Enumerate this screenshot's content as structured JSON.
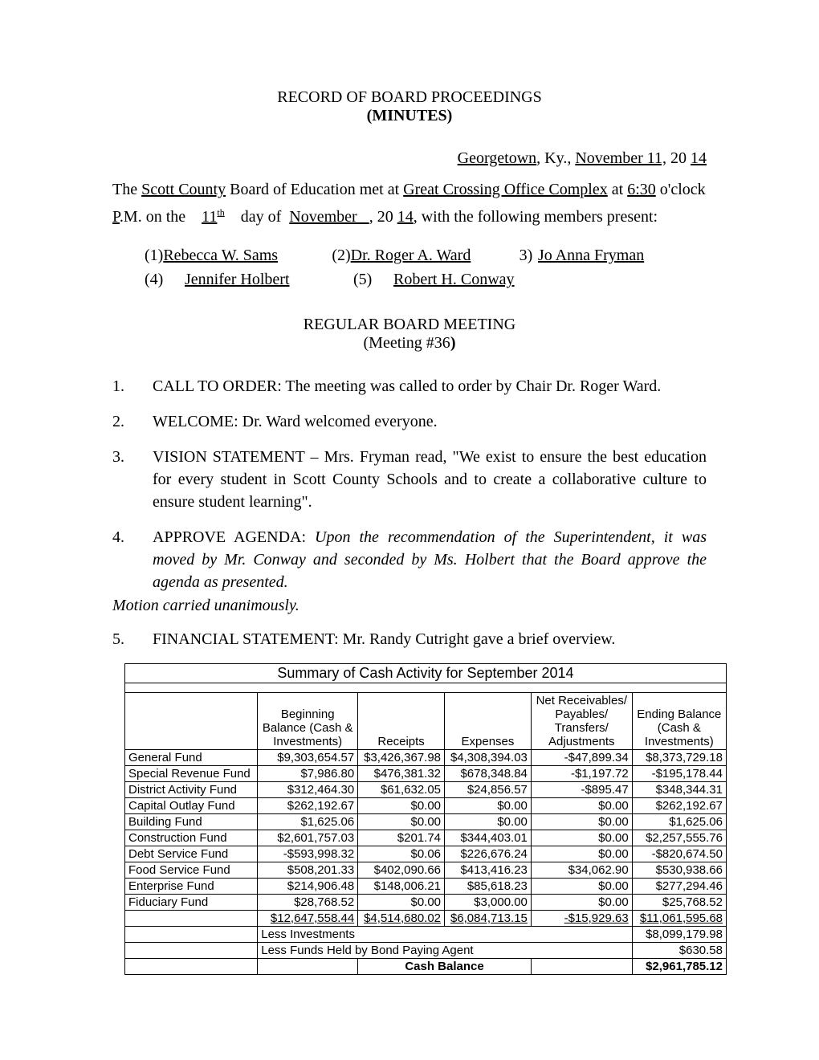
{
  "header": {
    "line1": "RECORD OF BOARD PROCEEDINGS",
    "line2": "(MINUTES)"
  },
  "dateLine": {
    "city": "Georgetown",
    "state": ", Ky., ",
    "monthDay": "November 11,",
    "yearPrefix": " 20 ",
    "yearSuffix": "14"
  },
  "intro": {
    "pre": "The ",
    "county": "Scott County",
    "mid1": " Board of Education met at ",
    "location": "Great Crossing Office Complex",
    "mid2": " at ",
    "time": "6:30",
    "mid3": " o'clock",
    "p": "P",
    "mid4": ".M. on the    ",
    "day": "11",
    "dayOrd": "th",
    "mid5": "    day of  ",
    "month": "November   ",
    "mid6": ", 20 ",
    "year": "14",
    "mid7": ", with the following members present:"
  },
  "members": {
    "r1c1": "(1)",
    "r1n1": "Rebecca W. Sams",
    "r1c2": "(2)",
    "r1n2": "Dr. Roger A. Ward",
    "r1c3": "3)",
    "r1n3": "Jo Anna Fryman",
    "r2c1": "(4)",
    "r2n1": "Jennifer Holbert",
    "r2c2": "(5)",
    "r2n2": "Robert H. Conway"
  },
  "meetingHeader": {
    "line1": "REGULAR BOARD MEETING",
    "line2a": "(Meeting #36",
    "line2b": ")"
  },
  "items": {
    "i1": {
      "num": "1.",
      "text": "CALL TO ORDER: The meeting was called to order by Chair Dr. Roger Ward."
    },
    "i2": {
      "num": "2.",
      "text": "WELCOME: Dr. Ward welcomed everyone."
    },
    "i3": {
      "num": "3.",
      "text": "VISION STATEMENT – Mrs. Fryman read, \"We exist to ensure the best education for every student in Scott County Schools and to create a collaborative culture to ensure student learning\"."
    },
    "i4": {
      "num": "4.",
      "lead": "APPROVE AGENDA:  ",
      "italic": "Upon the recommendation of the Superintendent, it was moved by Mr. Conway and seconded by Ms. Holbert that the Board approve the agenda as presented."
    },
    "motion": "Motion carried unanimously.",
    "i5": {
      "num": "5.",
      "text": "FINANCIAL STATEMENT: Mr. Randy Cutright gave a brief overview."
    }
  },
  "table": {
    "title": "Summary of Cash Activity for September 2014",
    "headers": {
      "c2a": "Beginning",
      "c2b": "Balance (Cash &",
      "c2c": "Investments)",
      "c3": "Receipts",
      "c4": "Expenses",
      "c5a": "Net Receivables/",
      "c5b": "Payables/",
      "c5c": "Transfers/",
      "c5d": "Adjustments",
      "c6a": "Ending Balance",
      "c6b": "(Cash &",
      "c6c": "Investments)"
    },
    "rows": [
      {
        "label": "General Fund",
        "c2": "$9,303,654.57",
        "c3": "$3,426,367.98",
        "c4": "$4,308,394.03",
        "c5": "-$47,899.34",
        "c6": "$8,373,729.18"
      },
      {
        "label": "Special Revenue Fund",
        "c2": "$7,986.80",
        "c3": "$476,381.32",
        "c4": "$678,348.84",
        "c5": "-$1,197.72",
        "c6": "-$195,178.44"
      },
      {
        "label": "District Activity Fund",
        "c2": "$312,464.30",
        "c3": "$61,632.05",
        "c4": "$24,856.57",
        "c5": "-$895.47",
        "c6": "$348,344.31"
      },
      {
        "label": "Capital Outlay Fund",
        "c2": "$262,192.67",
        "c3": "$0.00",
        "c4": "$0.00",
        "c5": "$0.00",
        "c6": "$262,192.67"
      },
      {
        "label": "Building Fund",
        "c2": "$1,625.06",
        "c3": "$0.00",
        "c4": "$0.00",
        "c5": "$0.00",
        "c6": "$1,625.06"
      },
      {
        "label": "Construction Fund",
        "c2": "$2,601,757.03",
        "c3": "$201.74",
        "c4": "$344,403.01",
        "c5": "$0.00",
        "c6": "$2,257,555.76"
      },
      {
        "label": "Debt Service Fund",
        "c2": "-$593,998.32",
        "c3": "$0.06",
        "c4": "$226,676.24",
        "c5": "$0.00",
        "c6": "-$820,674.50"
      },
      {
        "label": "Food Service Fund",
        "c2": "$508,201.33",
        "c3": "$402,090.66",
        "c4": "$413,416.23",
        "c5": "$34,062.90",
        "c6": "$530,938.66"
      },
      {
        "label": "Enterprise Fund",
        "c2": "$214,906.48",
        "c3": "$148,006.21",
        "c4": "$85,618.23",
        "c5": "$0.00",
        "c6": "$277,294.46"
      },
      {
        "label": "Fiduciary Fund",
        "c2": "$28,768.52",
        "c3": "$0.00",
        "c4": "$3,000.00",
        "c5": "$0.00",
        "c6": "$25,768.52"
      }
    ],
    "totals": {
      "c2": "$12,647,558.44",
      "c3": "$4,514,680.02",
      "c4": "$6,084,713.15",
      "c5": "-$15,929.63",
      "c6": "$11,061,595.68"
    },
    "footer": {
      "lessInv": {
        "label": "Less Investments",
        "val": "$8,099,179.98"
      },
      "lessBond": {
        "label": "Less Funds Held by Bond Paying Agent",
        "val": "$630.58"
      },
      "cashBal": {
        "label": "Cash Balance",
        "val": "$2,961,785.12"
      }
    }
  }
}
